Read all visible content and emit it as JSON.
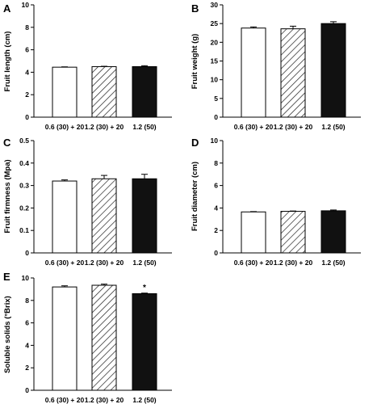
{
  "figure": {
    "background": "#ffffff",
    "bar_colors": {
      "0.6 (30) + 20": "#ffffff",
      "1.2 (30) + 20": "hatched",
      "1.2 (50)": "#111111"
    }
  },
  "chart_data": [
    {
      "panel": "A",
      "type": "bar",
      "title": "",
      "xlabel": "",
      "ylabel": "Fruit length (cm)",
      "categories": [
        "0.6 (30) + 20",
        "1.2 (30) + 20",
        "1.2 (50)"
      ],
      "values": [
        4.45,
        4.5,
        4.5
      ],
      "errors": [
        0.03,
        0.03,
        0.08
      ],
      "ylim": [
        0,
        10
      ],
      "yticks": [
        0,
        2,
        4,
        6,
        8,
        10
      ],
      "show_xticklabels": true,
      "annotations": []
    },
    {
      "panel": "B",
      "type": "bar",
      "title": "",
      "xlabel": "",
      "ylabel": "Fruit weight (g)",
      "categories": [
        "0.6 (30) + 20",
        "1.2 (30) + 20",
        "1.2 (50)"
      ],
      "values": [
        23.8,
        23.6,
        25.0
      ],
      "errors": [
        0.3,
        0.7,
        0.5
      ],
      "ylim": [
        0,
        30
      ],
      "yticks": [
        0,
        5,
        10,
        15,
        20,
        25,
        30
      ],
      "show_xticklabels": true,
      "annotations": []
    },
    {
      "panel": "C",
      "type": "bar",
      "title": "",
      "xlabel": "",
      "ylabel": "Fruit firmness (Mpa)",
      "categories": [
        "0.6 (30) + 20",
        "1.2 (30) + 20",
        "1.2 (50)"
      ],
      "values": [
        0.32,
        0.33,
        0.33
      ],
      "errors": [
        0.005,
        0.015,
        0.02
      ],
      "ylim": [
        0,
        0.5
      ],
      "yticks": [
        0,
        0.1,
        0.2,
        0.3,
        0.4,
        0.5
      ],
      "show_xticklabels": true,
      "annotations": []
    },
    {
      "panel": "D",
      "type": "bar",
      "title": "",
      "xlabel": "",
      "ylabel": "Fruit diameter (cm)",
      "categories": [
        "0.6 (30) + 20",
        "1.2 (30) + 20",
        "1.2 (50)"
      ],
      "values": [
        3.65,
        3.7,
        3.75
      ],
      "errors": [
        0.03,
        0.03,
        0.07
      ],
      "ylim": [
        0,
        10
      ],
      "yticks": [
        0,
        2,
        4,
        6,
        8,
        10
      ],
      "show_xticklabels": true,
      "annotations": []
    },
    {
      "panel": "E",
      "type": "bar",
      "title": "",
      "xlabel": "",
      "ylabel": "Soluble solids (°Brix)",
      "categories": [
        "0.6 (30) + 20",
        "1.2 (30) + 20",
        "1.2 (50)"
      ],
      "values": [
        9.2,
        9.35,
        8.6
      ],
      "errors": [
        0.1,
        0.1,
        0.05
      ],
      "ylim": [
        0,
        10
      ],
      "yticks": [
        0,
        2,
        4,
        6,
        8,
        10
      ],
      "show_xticklabels": true,
      "annotations": [
        {
          "category_index": 2,
          "text": "*"
        }
      ]
    }
  ]
}
